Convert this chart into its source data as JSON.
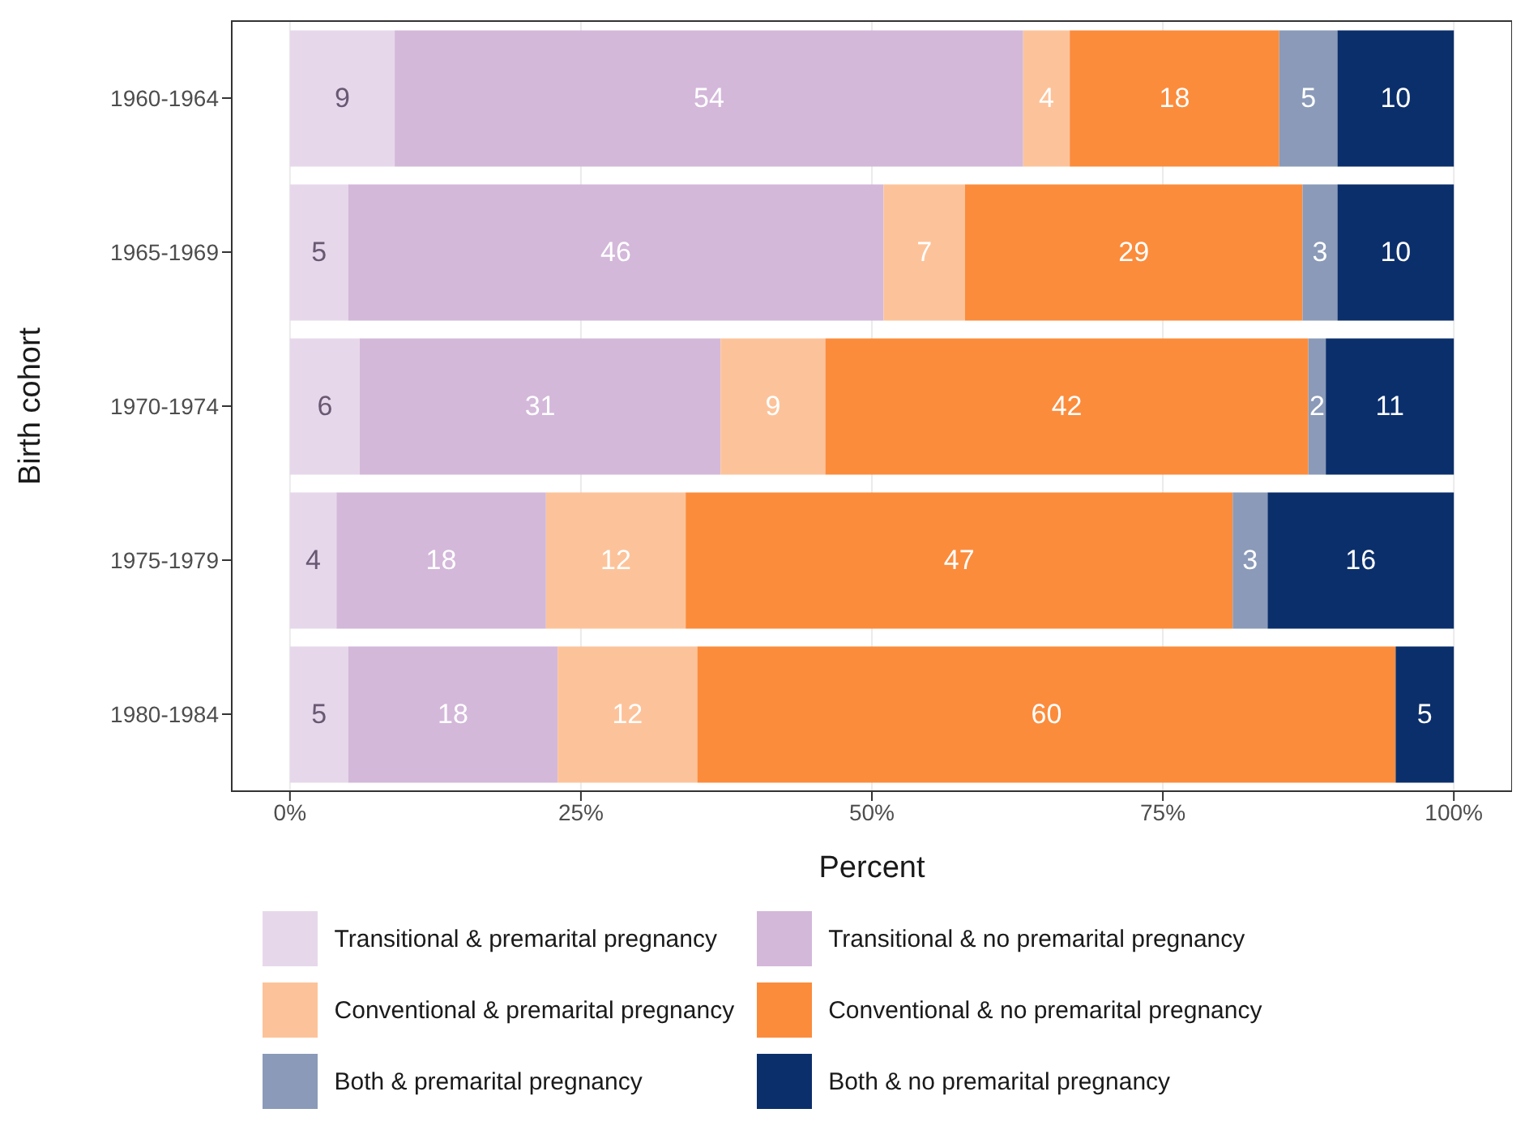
{
  "chart_data": {
    "type": "bar",
    "orientation": "horizontal",
    "stacked": true,
    "xlabel": "Percent",
    "ylabel": "Birth cohort",
    "categories": [
      "1960-1964",
      "1965-1969",
      "1970-1974",
      "1975-1979",
      "1980-1984"
    ],
    "series": [
      {
        "name": "Transitional & premarital pregnancy",
        "color": "#e6d8ea",
        "values": [
          9,
          5,
          6,
          4,
          5
        ],
        "value_labels": [
          "9",
          "5",
          "6",
          "4",
          "5"
        ]
      },
      {
        "name": "Transitional & no premarital pregnancy",
        "color": "#d3b8da",
        "values": [
          54,
          46,
          31,
          18,
          18
        ],
        "value_labels": [
          "54",
          "46",
          "31",
          "18",
          "18"
        ]
      },
      {
        "name": "Conventional & premarital pregnancy",
        "color": "#fcc39a",
        "values": [
          4,
          7,
          9,
          12,
          12
        ],
        "value_labels": [
          "4",
          "7",
          "9",
          "12",
          "12"
        ]
      },
      {
        "name": "Conventional & no premarital pregnancy",
        "color": "#fb8c3c",
        "values": [
          18,
          29,
          41.5,
          47,
          60
        ],
        "value_labels": [
          "18",
          "29",
          "42",
          "47",
          "60"
        ]
      },
      {
        "name": "Both & premarital pregnancy",
        "color": "#8a9ab8",
        "values": [
          5,
          3,
          1.5,
          3,
          null
        ],
        "value_labels": [
          "5",
          "3",
          "2",
          "3",
          null
        ]
      },
      {
        "name": "Both & no premarital pregnancy",
        "color": "#0b2f6b",
        "values": [
          10,
          10,
          11,
          16,
          5
        ],
        "value_labels": [
          "10",
          "10",
          "11",
          "16",
          "5"
        ]
      }
    ],
    "xlim": [
      -5,
      105
    ],
    "xticks": [
      {
        "value": 0,
        "label": "0%"
      },
      {
        "value": 25,
        "label": "25%"
      },
      {
        "value": 50,
        "label": "50%"
      },
      {
        "value": 75,
        "label": "75%"
      },
      {
        "value": 100,
        "label": "100%"
      }
    ],
    "grid": "x",
    "legend": "bottom"
  }
}
